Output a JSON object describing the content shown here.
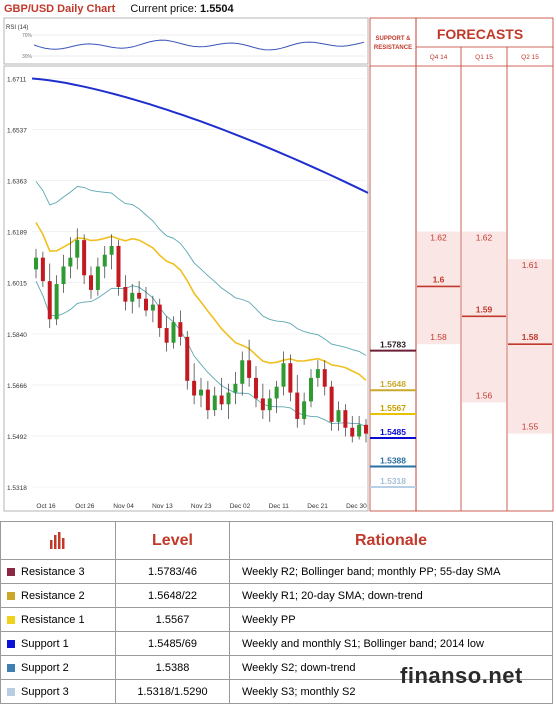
{
  "header": {
    "chart_title": "GBP/USD Daily Chart",
    "price_label": "Current price:",
    "price_value": "1.5504"
  },
  "chart_data": {
    "type": "candlestick",
    "title": "GBP/USD Daily Chart",
    "y_ticks": [
      "1.6711",
      "1.6537",
      "1.6363",
      "1.6189",
      "1.6015",
      "1.5840",
      "1.5666",
      "1.5492",
      "1.5318"
    ],
    "y_values": [
      1.6711,
      1.6537,
      1.6363,
      1.6189,
      1.6015,
      1.584,
      1.5666,
      1.5492,
      1.5318
    ],
    "x_ticks": [
      "Oct 16",
      "Oct 26",
      "Nov 04",
      "Nov 13",
      "Nov 23",
      "Dec 02",
      "Dec 11",
      "Dec 21",
      "Dec 30"
    ],
    "ylim": [
      1.526,
      1.674
    ],
    "rsi": {
      "label": "RSI (14)",
      "ticks": [
        "70%",
        "30%"
      ]
    },
    "series": [
      {
        "name": "55-day SMA",
        "color": "#1f2fcf"
      },
      {
        "name": "20-day SMA",
        "color": "#f0c020"
      },
      {
        "name": "Bollinger band",
        "color": "#5aa7b0"
      }
    ],
    "candles": [
      [
        1.606,
        1.613,
        1.603,
        1.61
      ],
      [
        1.61,
        1.612,
        1.6,
        1.602
      ],
      [
        1.602,
        1.608,
        1.586,
        1.589
      ],
      [
        1.589,
        1.604,
        1.587,
        1.601
      ],
      [
        1.601,
        1.611,
        1.598,
        1.607
      ],
      [
        1.607,
        1.617,
        1.603,
        1.61
      ],
      [
        1.61,
        1.62,
        1.606,
        1.616
      ],
      [
        1.616,
        1.618,
        1.601,
        1.604
      ],
      [
        1.604,
        1.607,
        1.596,
        1.599
      ],
      [
        1.599,
        1.61,
        1.597,
        1.607
      ],
      [
        1.607,
        1.614,
        1.603,
        1.611
      ],
      [
        1.611,
        1.618,
        1.606,
        1.614
      ],
      [
        1.614,
        1.616,
        1.597,
        1.6
      ],
      [
        1.6,
        1.604,
        1.592,
        1.595
      ],
      [
        1.595,
        1.601,
        1.591,
        1.598
      ],
      [
        1.598,
        1.602,
        1.593,
        1.596
      ],
      [
        1.596,
        1.6,
        1.59,
        1.592
      ],
      [
        1.592,
        1.597,
        1.588,
        1.594
      ],
      [
        1.594,
        1.596,
        1.583,
        1.586
      ],
      [
        1.586,
        1.59,
        1.578,
        1.581
      ],
      [
        1.581,
        1.59,
        1.579,
        1.588
      ],
      [
        1.588,
        1.592,
        1.58,
        1.583
      ],
      [
        1.583,
        1.585,
        1.565,
        1.568
      ],
      [
        1.568,
        1.574,
        1.56,
        1.563
      ],
      [
        1.563,
        1.569,
        1.559,
        1.565
      ],
      [
        1.565,
        1.568,
        1.555,
        1.558
      ],
      [
        1.558,
        1.566,
        1.556,
        1.563
      ],
      [
        1.563,
        1.569,
        1.558,
        1.56
      ],
      [
        1.56,
        1.567,
        1.555,
        1.564
      ],
      [
        1.564,
        1.571,
        1.56,
        1.567
      ],
      [
        1.567,
        1.578,
        1.563,
        1.575
      ],
      [
        1.575,
        1.582,
        1.566,
        1.569
      ],
      [
        1.569,
        1.573,
        1.559,
        1.562
      ],
      [
        1.562,
        1.567,
        1.555,
        1.558
      ],
      [
        1.558,
        1.565,
        1.554,
        1.562
      ],
      [
        1.562,
        1.568,
        1.557,
        1.566
      ],
      [
        1.566,
        1.578,
        1.563,
        1.574
      ],
      [
        1.574,
        1.577,
        1.561,
        1.564
      ],
      [
        1.564,
        1.57,
        1.552,
        1.555
      ],
      [
        1.555,
        1.564,
        1.553,
        1.561
      ],
      [
        1.561,
        1.572,
        1.559,
        1.569
      ],
      [
        1.569,
        1.575,
        1.566,
        1.572
      ],
      [
        1.572,
        1.575,
        1.563,
        1.566
      ],
      [
        1.566,
        1.568,
        1.551,
        1.554
      ],
      [
        1.554,
        1.561,
        1.551,
        1.558
      ],
      [
        1.558,
        1.56,
        1.549,
        1.552
      ],
      [
        1.552,
        1.556,
        1.547,
        1.549
      ],
      [
        1.549,
        1.556,
        1.548,
        1.553
      ],
      [
        1.553,
        1.555,
        1.547,
        1.55
      ]
    ],
    "levels": [
      {
        "label": "1.5783",
        "value": 1.5783,
        "color": "#6b1f34",
        "text_color": "#2a1a22"
      },
      {
        "label": "1.5648",
        "value": 1.5648,
        "color": "#c9a82c",
        "text_color": "#c9a82c"
      },
      {
        "label": "1.5567",
        "value": 1.5567,
        "color": "#e6c200",
        "text_color": "#c9a000"
      },
      {
        "label": "1.5485",
        "value": 1.5485,
        "color": "#0a0ad0",
        "text_color": "#0a0ad0"
      },
      {
        "label": "1.5388",
        "value": 1.5388,
        "color": "#2a70a0",
        "text_color": "#2a70a0"
      },
      {
        "label": "1.5318",
        "value": 1.5318,
        "color": "#b8d0e6",
        "text_color": "#a6bfd6"
      }
    ]
  },
  "panel": {
    "sr_label_1": "SUPPORT &",
    "sr_label_2": "RESISTANCE",
    "forecasts_title": "FORECASTS",
    "quarters": [
      {
        "label": "Q4 14",
        "high": "1.62",
        "mid": "1.6",
        "low": "1.58",
        "high_v": 1.6189,
        "mid_v": 1.6002,
        "low_v": 1.5805
      },
      {
        "label": "Q1 15",
        "high": "1.62",
        "mid": "1.59",
        "low": "1.56",
        "high_v": 1.6189,
        "mid_v": 1.59,
        "low_v": 1.5606
      },
      {
        "label": "Q2 15",
        "high": "1.61",
        "mid": "1.58",
        "low": "1.55",
        "high_v": 1.6095,
        "mid_v": 1.5805,
        "low_v": 1.55
      }
    ]
  },
  "table": {
    "headers": [
      "Level",
      "Rationale"
    ],
    "rows": [
      {
        "name": "Resistance 3",
        "color": "#8b2942",
        "level": "1.5783/46",
        "rationale": "Weekly R2; Bollinger band; monthly PP; 55-day SMA"
      },
      {
        "name": "Resistance 2",
        "color": "#c9a82c",
        "level": "1.5648/22",
        "rationale": "Weekly R1; 20-day SMA; down-trend"
      },
      {
        "name": "Resistance 1",
        "color": "#f0d21c",
        "level": "1.5567",
        "rationale": "Weekly PP"
      },
      {
        "name": "Support 1",
        "color": "#0a12d8",
        "level": "1.5485/69",
        "rationale": "Weekly and monthly S1; Bollinger band; 2014 low"
      },
      {
        "name": "Support 2",
        "color": "#3f7fb2",
        "level": "1.5388",
        "rationale": "Weekly S2; down-trend"
      },
      {
        "name": "Support 3",
        "color": "#b9cde2",
        "level": "1.5318/1.5290",
        "rationale": "Weekly S3; monthly S2"
      }
    ]
  },
  "watermark": "finanso.net"
}
